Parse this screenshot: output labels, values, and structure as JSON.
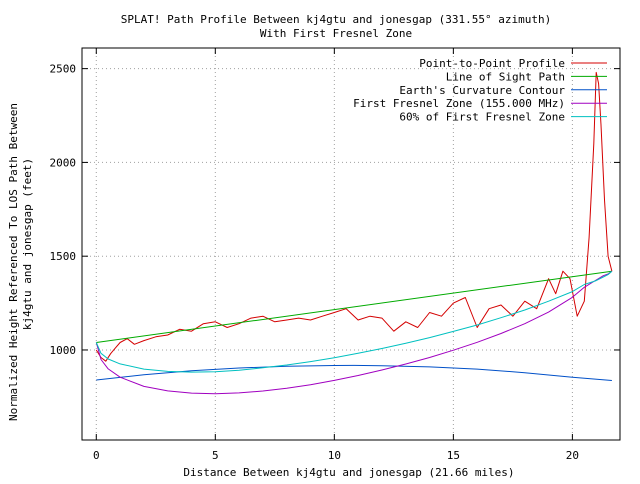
{
  "chart_data": {
    "type": "line",
    "title": "SPLAT! Path Profile Between kj4gtu and jonesgap (331.55° azimuth)",
    "subtitle": "With First Fresnel Zone",
    "xlabel": "Distance Between kj4gtu and jonesgap (21.66 miles)",
    "ylabel_line1": "Normalized Height Referenced To LOS Path Between",
    "ylabel_line2": "kj4gtu and jonesgap (feet)",
    "xlim": [
      -0.6,
      22.0
    ],
    "ylim": [
      520,
      2610
    ],
    "x_ticks": [
      0,
      5,
      10,
      15,
      20
    ],
    "y_ticks": [
      1000,
      1500,
      2000,
      2500
    ],
    "grid": true,
    "legend_position": "top-right",
    "series": [
      {
        "name": "Point-to-Point Profile",
        "color": "#d40000",
        "x": [
          0,
          0.2,
          0.4,
          0.6,
          0.8,
          1.0,
          1.3,
          1.6,
          2.0,
          2.5,
          3.0,
          3.5,
          4.0,
          4.5,
          5.0,
          5.5,
          6.0,
          6.5,
          7.0,
          7.5,
          8.0,
          8.5,
          9.0,
          9.5,
          10.0,
          10.5,
          11.0,
          11.5,
          12.0,
          12.5,
          13.0,
          13.5,
          14.0,
          14.5,
          15.0,
          15.5,
          16.0,
          16.5,
          17.0,
          17.5,
          18.0,
          18.5,
          19.0,
          19.3,
          19.6,
          19.9,
          20.2,
          20.5,
          20.7,
          20.9,
          21.0,
          21.1,
          21.2,
          21.35,
          21.5,
          21.66
        ],
        "y": [
          1000,
          960,
          940,
          980,
          1010,
          1040,
          1060,
          1030,
          1050,
          1070,
          1080,
          1110,
          1100,
          1140,
          1150,
          1120,
          1140,
          1170,
          1180,
          1150,
          1160,
          1170,
          1160,
          1180,
          1200,
          1220,
          1160,
          1180,
          1170,
          1100,
          1150,
          1120,
          1200,
          1180,
          1250,
          1280,
          1120,
          1220,
          1240,
          1180,
          1260,
          1220,
          1380,
          1300,
          1420,
          1380,
          1180,
          1260,
          1600,
          2100,
          2480,
          2420,
          2200,
          1800,
          1500,
          1420
        ]
      },
      {
        "name": "Line of Sight Path",
        "color": "#00aa00",
        "x": [
          0,
          21.66
        ],
        "y": [
          1040,
          1420
        ]
      },
      {
        "name": "Earth's Curvature Contour",
        "color": "#0050c8",
        "x": [
          0,
          2,
          4,
          6,
          8,
          10,
          10.83,
          12,
          14,
          16,
          18,
          20,
          21.66
        ],
        "y": [
          840,
          868,
          889,
          904,
          913,
          917,
          917.5,
          916,
          910,
          898,
          879,
          855,
          837
        ]
      },
      {
        "name": "First Fresnel Zone (155.000 MHz)",
        "color": "#a000c0",
        "x": [
          0,
          0.2,
          0.5,
          1,
          2,
          3,
          4,
          5,
          6,
          7,
          8,
          9,
          10,
          11,
          12,
          13,
          14,
          15,
          16,
          17,
          18,
          19,
          20,
          20.5,
          21,
          21.3,
          21.5,
          21.66
        ],
        "y": [
          1040,
          949,
          899,
          855,
          806,
          782,
          770,
          767,
          771,
          781,
          796,
          815,
          838,
          864,
          893,
          925,
          960,
          999,
          1041,
          1088,
          1140,
          1202,
          1281,
          1334,
          1373,
          1396,
          1405,
          1420
        ]
      },
      {
        "name": "60% of First Fresnel Zone",
        "color": "#00c0c0",
        "x": [
          0,
          0.2,
          0.5,
          1,
          2,
          3,
          4,
          5,
          6,
          7,
          8,
          9,
          10,
          11,
          12,
          13,
          14,
          15,
          16,
          17,
          18,
          19,
          20,
          20.5,
          21,
          21.3,
          21.5,
          21.66
        ],
        "y": [
          1040,
          982,
          952,
          926,
          898,
          886,
          882,
          884,
          892,
          905,
          920,
          938,
          959,
          982,
          1008,
          1036,
          1066,
          1099,
          1133,
          1172,
          1213,
          1260,
          1311,
          1349,
          1370,
          1389,
          1402,
          1420
        ]
      }
    ]
  }
}
